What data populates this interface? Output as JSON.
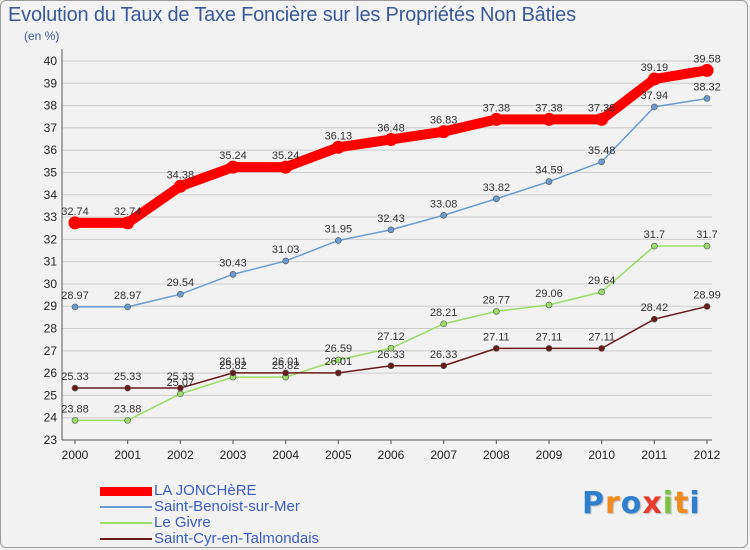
{
  "title": "Evolution du Taux de Taxe Foncière sur les Propriétés Non Bâties",
  "unit": "(en %)",
  "colors": {
    "title": "#3b5998",
    "legend_text": "#3b5cc4",
    "grid": "#cccccc"
  },
  "chart_data": {
    "type": "line",
    "title": "Evolution du Taux de Taxe Foncière sur les Propriétés Non Bâties",
    "ylabel": "(en %)",
    "xlabel": "",
    "ylim": [
      23,
      40
    ],
    "y_ticks": [
      23,
      24,
      25,
      26,
      27,
      28,
      29,
      30,
      31,
      32,
      33,
      34,
      35,
      36,
      37,
      38,
      39,
      40
    ],
    "categories": [
      "2000",
      "2001",
      "2002",
      "2003",
      "2004",
      "2005",
      "2006",
      "2007",
      "2008",
      "2009",
      "2010",
      "2011",
      "2012"
    ],
    "grid": "horizontal",
    "legend_position": "bottom-left",
    "series": [
      {
        "name": "LA JONCHèRE",
        "color": "#ff0000",
        "values": [
          32.74,
          32.74,
          34.38,
          35.24,
          35.24,
          36.13,
          36.48,
          36.83,
          37.38,
          37.38,
          37.38,
          39.19,
          39.58
        ],
        "labels": [
          "32.74",
          "32.74",
          "34.38",
          "35.24",
          "35.24",
          "36.13",
          "36.48",
          "36.83",
          "37.38",
          "37.38",
          "37.38",
          "39.19",
          "39.58"
        ]
      },
      {
        "name": "Saint-Benoist-sur-Mer",
        "color": "#6b9bd1",
        "values": [
          28.97,
          28.97,
          29.54,
          30.43,
          31.03,
          31.95,
          32.43,
          33.08,
          33.82,
          34.59,
          35.48,
          37.94,
          38.32
        ],
        "labels": [
          "28.97",
          "28.97",
          "29.54",
          "30.43",
          "31.03",
          "31.95",
          "32.43",
          "33.08",
          "33.82",
          "34.59",
          "35.48",
          "37.94",
          "38.32"
        ]
      },
      {
        "name": "Le Givre",
        "color": "#99dd66",
        "values": [
          23.88,
          23.88,
          25.07,
          25.82,
          25.82,
          26.59,
          27.12,
          28.21,
          28.77,
          29.06,
          29.64,
          31.7,
          31.7
        ],
        "labels": [
          "23.88",
          "23.88",
          "25.07",
          "25.82",
          "25.82",
          "26.59",
          "27.12",
          "28.21",
          "28.77",
          "29.06",
          "29.64",
          "31.7",
          "31.7"
        ]
      },
      {
        "name": "Saint-Cyr-en-Talmondais",
        "color": "#6b1a1a",
        "values": [
          25.33,
          25.33,
          25.33,
          26.01,
          26.01,
          26.01,
          26.33,
          26.33,
          27.11,
          27.11,
          27.11,
          28.42,
          28.99
        ],
        "labels": [
          "25.33",
          "25.33",
          "25.33",
          "26.01",
          "26.01",
          "26.01",
          "26.33",
          "26.33",
          "27.11",
          "27.11",
          "27.11",
          "28.42",
          "28.99"
        ]
      }
    ]
  },
  "legend": {
    "items": [
      {
        "label": "LA JONCHèRE",
        "color": "#ff0000"
      },
      {
        "label": "Saint-Benoist-sur-Mer",
        "color": "#6b9bd1"
      },
      {
        "label": "Le Givre",
        "color": "#99dd66"
      },
      {
        "label": "Saint-Cyr-en-Talmondais",
        "color": "#6b1a1a"
      }
    ]
  },
  "logo": {
    "text": "Proxiti",
    "letters": [
      {
        "ch": "P",
        "color": "#2f7fd1"
      },
      {
        "ch": "r",
        "color": "#f08a1c"
      },
      {
        "ch": "o",
        "color": "#2f7fd1"
      },
      {
        "ch": "x",
        "color": "#e63a2e"
      },
      {
        "ch": "i",
        "color": "#7cc242"
      },
      {
        "ch": "t",
        "color": "#f08a1c"
      },
      {
        "ch": "i",
        "color": "#2f7fd1"
      }
    ]
  }
}
